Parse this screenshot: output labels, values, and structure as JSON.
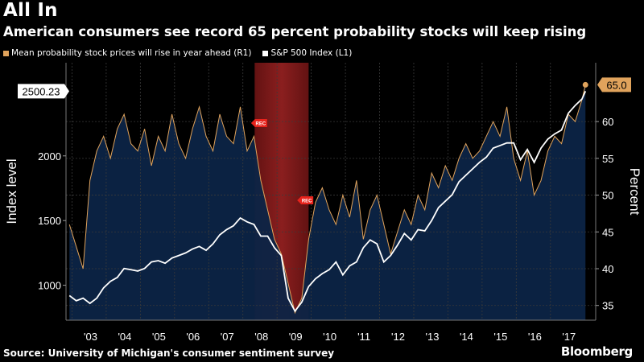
{
  "title": "All In",
  "subtitle": "American consumers see record 65 percent probability stocks will keep rising",
  "source": "Source: University of Michigan's consumer sentiment survey",
  "brand": "Bloomberg",
  "colors": {
    "background": "#000000",
    "area_fill": "#0c2446",
    "sp500": "#ffffff",
    "probability": "#e0a35c",
    "recession": "#8b1e1e",
    "rec_marker": "#e8231c"
  },
  "chart_data": {
    "type": "line",
    "x_ticks": [
      "'03",
      "'04",
      "'05",
      "'06",
      "'07",
      "'08",
      "'09",
      "'10",
      "'11",
      "'12",
      "'13",
      "'14",
      "'15",
      "'16",
      "'17"
    ],
    "y_left": {
      "label": "Index level",
      "ticks": [
        1000,
        1500,
        2000
      ],
      "range": [
        730,
        2720
      ]
    },
    "y_right": {
      "label": "Percent",
      "ticks": [
        35,
        40,
        45,
        50,
        55,
        60
      ],
      "range": [
        33,
        68
      ]
    },
    "recession_shading": {
      "start": 2007.92,
      "end": 2009.5
    },
    "rec_markers": [
      "REC",
      "REC"
    ],
    "last_value_labels": {
      "sp500": "2500.23",
      "probability": "65.0"
    },
    "grid": true,
    "legend_position": "top-left",
    "series": [
      {
        "name": "Mean probability stock prices will rise in year ahead (R1)",
        "axis": "right",
        "x": [
          2002.5,
          2002.7,
          2002.9,
          2003.1,
          2003.3,
          2003.5,
          2003.7,
          2003.9,
          2004.1,
          2004.3,
          2004.5,
          2004.7,
          2004.9,
          2005.1,
          2005.3,
          2005.5,
          2005.7,
          2005.9,
          2006.1,
          2006.3,
          2006.5,
          2006.7,
          2006.9,
          2007.1,
          2007.3,
          2007.5,
          2007.7,
          2007.9,
          2008.1,
          2008.3,
          2008.5,
          2008.7,
          2008.9,
          2009.1,
          2009.3,
          2009.5,
          2009.7,
          2009.9,
          2010.1,
          2010.3,
          2010.5,
          2010.7,
          2010.9,
          2011.1,
          2011.3,
          2011.5,
          2011.7,
          2011.9,
          2012.1,
          2012.3,
          2012.5,
          2012.7,
          2012.9,
          2013.1,
          2013.3,
          2013.5,
          2013.7,
          2013.9,
          2014.1,
          2014.3,
          2014.5,
          2014.7,
          2014.9,
          2015.1,
          2015.3,
          2015.5,
          2015.7,
          2015.9,
          2016.1,
          2016.3,
          2016.5,
          2016.7,
          2016.9,
          2017.1,
          2017.3,
          2017.5,
          2017.6
        ],
        "values": [
          46,
          43,
          40,
          52,
          56,
          58,
          55,
          59,
          61,
          57,
          56,
          59,
          54,
          58,
          56,
          61,
          57,
          55,
          59,
          62,
          58,
          56,
          61,
          58,
          57,
          62,
          56,
          58,
          52,
          48,
          44,
          42,
          38,
          34,
          36,
          44,
          49,
          51,
          48,
          46,
          50,
          47,
          52,
          44,
          48,
          50,
          46,
          42,
          45,
          48,
          46,
          50,
          48,
          53,
          51,
          54,
          52,
          55,
          57,
          55,
          56,
          58,
          60,
          58,
          62,
          55,
          52,
          56,
          50,
          52,
          56,
          58,
          57,
          61,
          60,
          63,
          65
        ]
      },
      {
        "name": "S&P 500 Index (L1)",
        "axis": "left",
        "x": [
          2002.5,
          2002.7,
          2002.9,
          2003.1,
          2003.3,
          2003.5,
          2003.7,
          2003.9,
          2004.1,
          2004.3,
          2004.5,
          2004.7,
          2004.9,
          2005.1,
          2005.3,
          2005.5,
          2005.7,
          2005.9,
          2006.1,
          2006.3,
          2006.5,
          2006.7,
          2006.9,
          2007.1,
          2007.3,
          2007.5,
          2007.7,
          2007.9,
          2008.1,
          2008.3,
          2008.5,
          2008.7,
          2008.9,
          2009.1,
          2009.3,
          2009.5,
          2009.7,
          2009.9,
          2010.1,
          2010.3,
          2010.5,
          2010.7,
          2010.9,
          2011.1,
          2011.3,
          2011.5,
          2011.7,
          2011.9,
          2012.1,
          2012.3,
          2012.5,
          2012.7,
          2012.9,
          2013.1,
          2013.3,
          2013.5,
          2013.7,
          2013.9,
          2014.1,
          2014.3,
          2014.5,
          2014.7,
          2014.9,
          2015.1,
          2015.3,
          2015.5,
          2015.7,
          2015.9,
          2016.1,
          2016.3,
          2016.5,
          2016.7,
          2016.9,
          2017.1,
          2017.3,
          2017.5,
          2017.6
        ],
        "values": [
          920,
          880,
          900,
          860,
          900,
          980,
          1030,
          1060,
          1130,
          1120,
          1110,
          1130,
          1180,
          1190,
          1170,
          1210,
          1230,
          1250,
          1280,
          1300,
          1270,
          1320,
          1390,
          1430,
          1460,
          1520,
          1490,
          1470,
          1380,
          1380,
          1290,
          1230,
          900,
          800,
          870,
          990,
          1050,
          1090,
          1120,
          1180,
          1080,
          1150,
          1180,
          1290,
          1350,
          1320,
          1180,
          1230,
          1310,
          1400,
          1350,
          1430,
          1420,
          1500,
          1600,
          1650,
          1700,
          1800,
          1850,
          1900,
          1950,
          1990,
          2060,
          2080,
          2100,
          2100,
          1970,
          2050,
          1950,
          2060,
          2130,
          2170,
          2200,
          2330,
          2390,
          2440,
          2500.23
        ]
      }
    ]
  }
}
